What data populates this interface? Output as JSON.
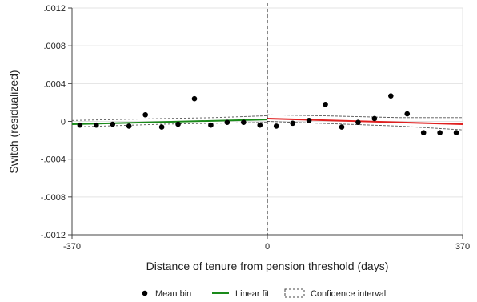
{
  "chart_data": {
    "type": "scatter",
    "xlabel": "Distance of tenure from pension threshold (days)",
    "ylabel": "Switch (residualized)",
    "xlim": [
      -370,
      370
    ],
    "ylim": [
      -0.0012,
      0.0012
    ],
    "xticks": [
      -370,
      0,
      370
    ],
    "xtick_labels": [
      "-370",
      "0",
      "370"
    ],
    "yticks": [
      -0.0012,
      -0.0008,
      -0.0004,
      0,
      0.0004,
      0.0008,
      0.0012
    ],
    "ytick_labels": [
      "-.0012",
      "-.0008",
      "-.0004",
      "0",
      ".0004",
      ".0008",
      ".0012"
    ],
    "grid": true,
    "threshold_x": 0,
    "legend_position": "bottom",
    "legend": [
      {
        "key": "mean-bin",
        "label": "Mean bin"
      },
      {
        "key": "linear-fit",
        "label": "Linear fit"
      },
      {
        "key": "confidence-interval",
        "label": "Confidence interval"
      }
    ],
    "series": [
      {
        "name": "Mean bin",
        "kind": "scatter",
        "color": "#000000",
        "x": [
          -355,
          -324,
          -293,
          -262,
          -231,
          -200,
          -169,
          -138,
          -107,
          -76,
          -45,
          -14,
          17,
          48,
          79,
          110,
          141,
          172,
          203,
          234,
          265,
          296,
          327,
          358
        ],
        "y": [
          -4e-05,
          -4e-05,
          -3e-05,
          -5e-05,
          7e-05,
          -6e-05,
          -3e-05,
          0.00024,
          -4e-05,
          -1e-05,
          -1e-05,
          -4e-05,
          -5e-05,
          -2e-05,
          1e-05,
          0.00018,
          -6e-05,
          -1e-05,
          3e-05,
          0.00027,
          8e-05,
          -0.00012,
          -0.00012,
          -0.00012
        ]
      },
      {
        "name": "Linear fit",
        "kind": "line",
        "side": "left",
        "color": "#1a8a1a",
        "x": [
          -370,
          0
        ],
        "y": [
          -3e-05,
          2e-05
        ]
      },
      {
        "name": "Linear fit",
        "kind": "line",
        "side": "right",
        "color": "#e02020",
        "x": [
          0,
          370
        ],
        "y": [
          3e-05,
          -3e-05
        ]
      },
      {
        "name": "Confidence interval",
        "kind": "band",
        "side": "left",
        "x": [
          -370,
          -200,
          -100,
          0
        ],
        "lower": [
          -6e-05,
          -3e-05,
          -2e-05,
          -1e-05
        ],
        "upper": [
          1e-05,
          3e-05,
          4e-05,
          6e-05
        ]
      },
      {
        "name": "Confidence interval",
        "kind": "band",
        "side": "right",
        "x": [
          0,
          100,
          250,
          370
        ],
        "lower": [
          0,
          -2e-05,
          -5e-05,
          -9e-05
        ],
        "upper": [
          7e-05,
          6e-05,
          4e-05,
          4e-05
        ]
      }
    ]
  }
}
